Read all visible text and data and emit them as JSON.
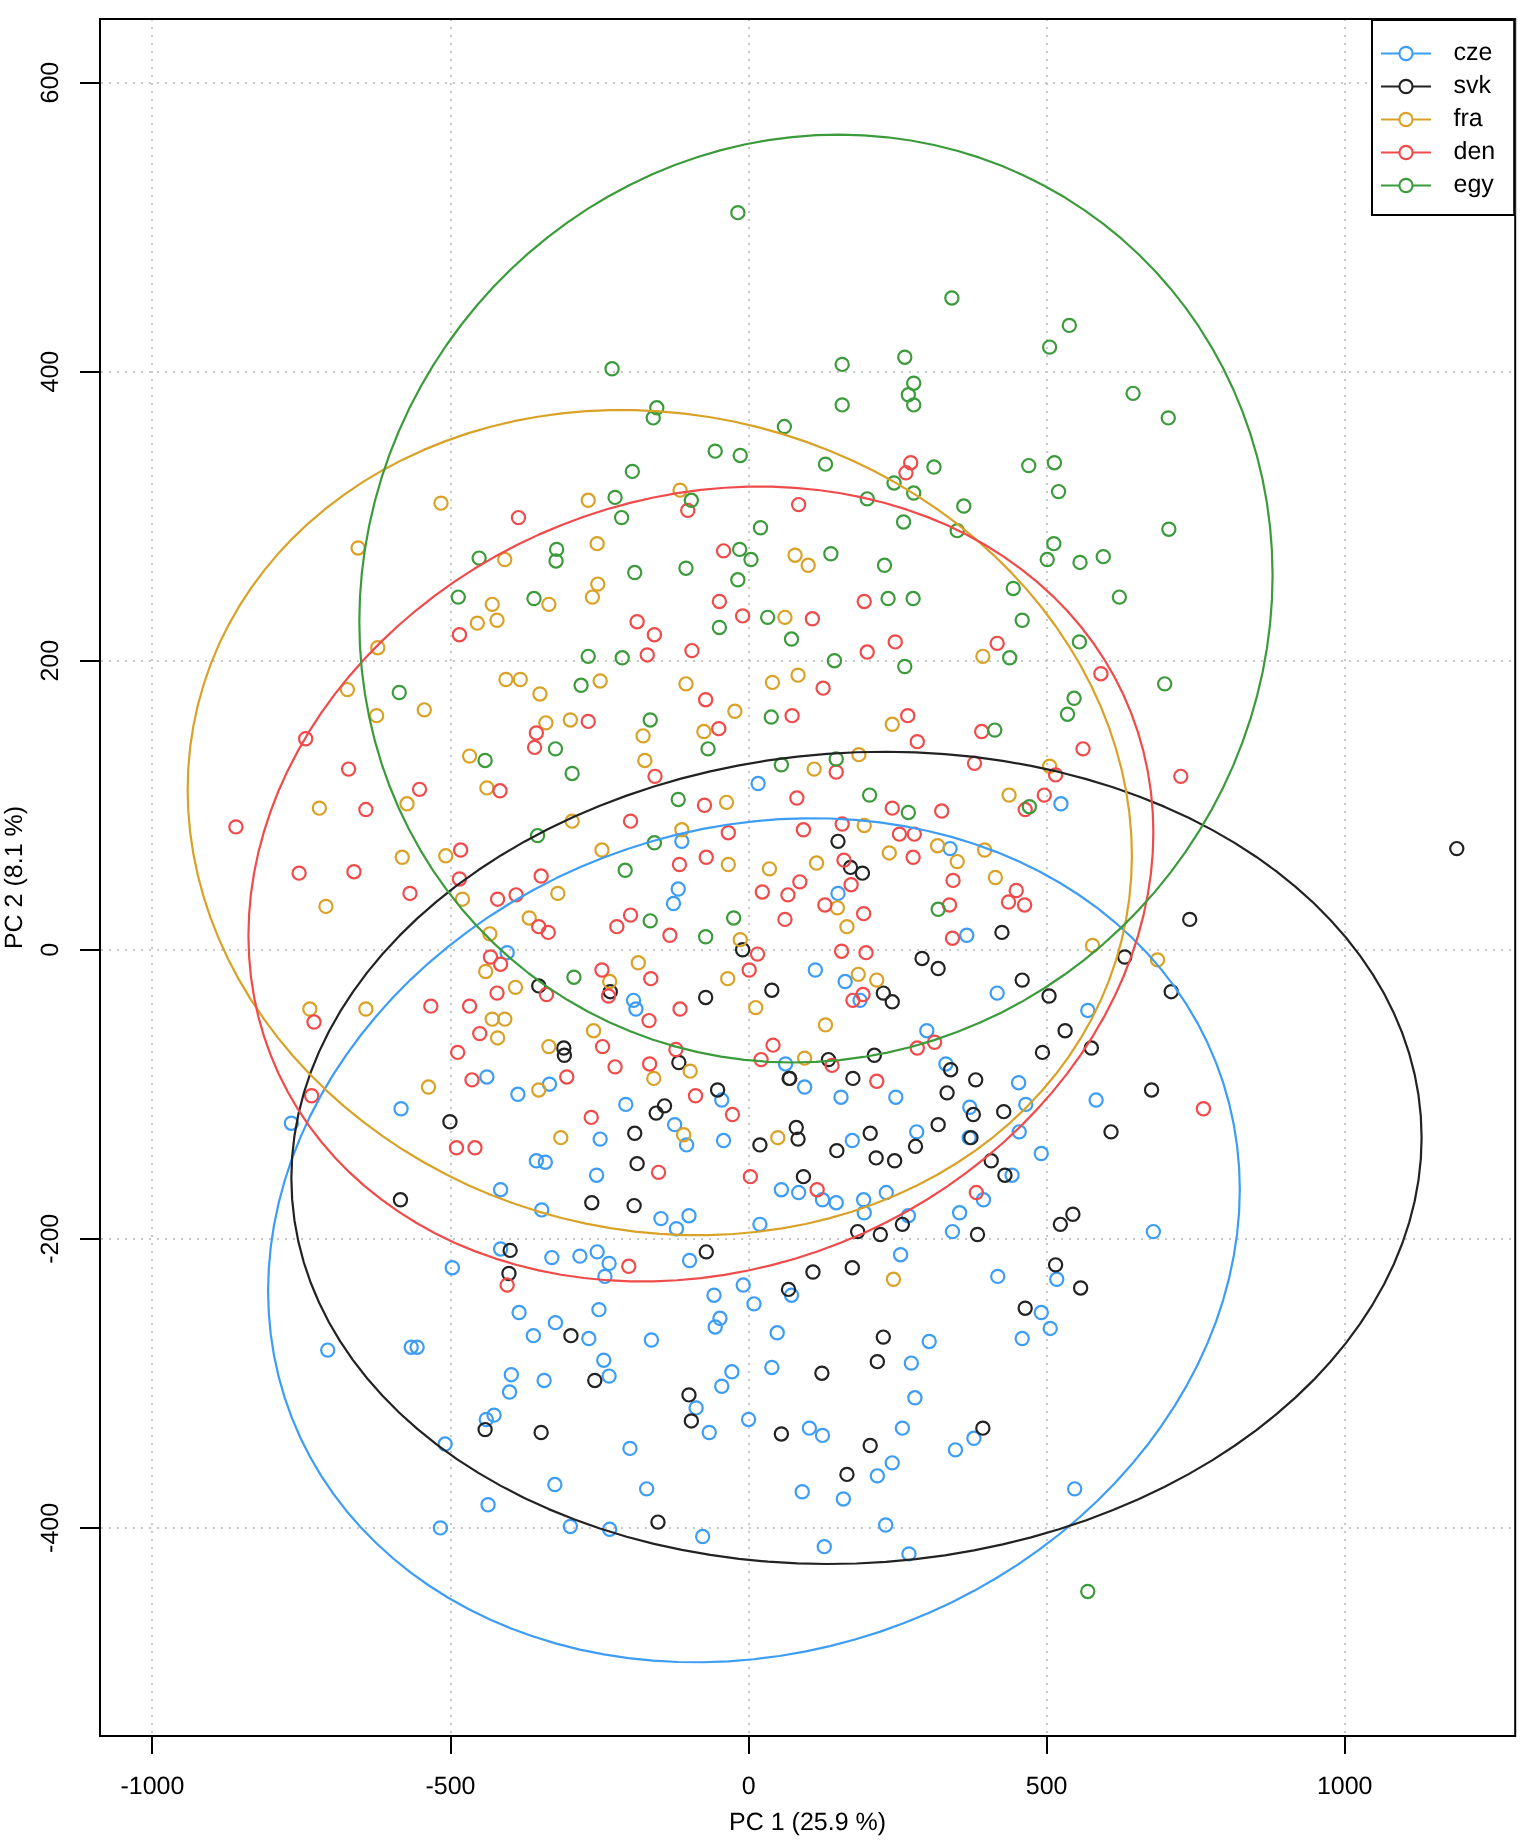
{
  "chart_data": {
    "type": "scatter",
    "xlabel": "PC 1 (25.9 %)",
    "ylabel": "PC 2 (8.1 %)",
    "xlim": [
      -1088,
      1286
    ],
    "ylim": [
      -544,
      644
    ],
    "xticks": [
      -1000,
      -500,
      0,
      500,
      1000
    ],
    "yticks": [
      -400,
      -200,
      0,
      200,
      400,
      600
    ],
    "grid": true,
    "legend": "top right",
    "marker": "circle",
    "series": [
      {
        "name": "cze",
        "color": "#3d9df5",
        "x": [
          -405,
          -112,
          -118,
          -126,
          -193,
          -189,
          -439,
          -387,
          -334,
          -583,
          -767,
          -206,
          -124,
          -104,
          -249,
          -42,
          -45,
          -356,
          -341,
          -255,
          16,
          62,
          524,
          338,
          366,
          150,
          112,
          162,
          187,
          417,
          569,
          299,
          331,
          247,
          155,
          94,
          453,
          465,
          583,
          371,
          454,
          491,
          174,
          282,
          370,
          -416,
          -347,
          55,
          -147,
          -100,
          -121,
          19,
          -416,
          -497,
          -330,
          -283,
          -254,
          -234,
          -241,
          -99,
          -9,
          9,
          -58,
          -385,
          -251,
          -324,
          -361,
          -268,
          -163,
          -48,
          -56,
          48,
          -706,
          -566,
          -556,
          -243,
          -398,
          -401,
          -343,
          -234,
          -28,
          -45,
          39,
          -427,
          -440,
          -88,
          -66,
          0,
          -509,
          -199,
          -325,
          -171,
          -437,
          -517,
          -299,
          -233,
          -77,
          679,
          84,
          124,
          147,
          193,
          231,
          268,
          354,
          342,
          394,
          442,
          255,
          194,
          418,
          517,
          491,
          506,
          459,
          303,
          273,
          279,
          258,
          102,
          124,
          347,
          378,
          241,
          216,
          90,
          159,
          547,
          230,
          127,
          269,
          72
        ],
        "values": [
          -2,
          75,
          42,
          32,
          -35,
          -41,
          -88,
          -100,
          -93,
          -110,
          -120,
          -107,
          -121,
          -135,
          -131,
          -132,
          -104,
          -146,
          -147,
          -156,
          115,
          -79,
          101,
          70,
          10,
          39,
          -14,
          -22,
          -35,
          -30,
          -42,
          -56,
          -79,
          -102,
          -102,
          -95,
          -92,
          -107,
          -104,
          -109,
          -126,
          -141,
          -132,
          -126,
          -130,
          -166,
          -180,
          -166,
          -186,
          -184,
          -193,
          -190,
          -207,
          -220,
          -213,
          -212,
          -209,
          -217,
          -226,
          -215,
          -232,
          -245,
          -239,
          -251,
          -249,
          -258,
          -267,
          -269,
          -270,
          -255,
          -261,
          -265,
          -277,
          -275,
          -275,
          -284,
          -294,
          -306,
          -298,
          -295,
          -292,
          -302,
          -289,
          -322,
          -325,
          -317,
          -334,
          -325,
          -342,
          -345,
          -370,
          -373,
          -384,
          -400,
          -399,
          -401,
          -406,
          -195,
          -168,
          -173,
          -175,
          -173,
          -168,
          -184,
          -182,
          -195,
          -173,
          -156,
          -211,
          -182,
          -226,
          -228,
          -251,
          -262,
          -269,
          -271,
          -286,
          -310,
          -331,
          -331,
          -336,
          -346,
          -338,
          -355,
          -364,
          -375,
          -380,
          -373,
          -398,
          -413,
          -418,
          -239
        ]
      },
      {
        "name": "svk",
        "color": "#222222",
        "x": [
          -352,
          -232,
          -72,
          39,
          -10,
          -310,
          -309,
          -117,
          -52,
          -141,
          -155,
          -501,
          -191,
          -187,
          19,
          69,
          80,
          1188,
          740,
          150,
          171,
          191,
          425,
          291,
          318,
          631,
          709,
          459,
          504,
          226,
          241,
          531,
          575,
          493,
          211,
          134,
          339,
          381,
          175,
          68,
          333,
          676,
          377,
          428,
          318,
          204,
          608,
          280,
          148,
          214,
          245,
          373,
          407,
          430,
          83,
          -584,
          -263,
          -192,
          -400,
          -402,
          -71,
          67,
          -298,
          -258,
          -100,
          -96,
          -442,
          -348,
          55,
          -152,
          92,
          183,
          221,
          258,
          384,
          523,
          544,
          515,
          557,
          464,
          174,
          108,
          226,
          216,
          123,
          393,
          204,
          165
        ],
        "values": [
          -25,
          -29,
          -33,
          -28,
          0,
          -68,
          -73,
          -78,
          -97,
          -108,
          -113,
          -119,
          -127,
          -148,
          -135,
          -89,
          -123,
          70,
          21,
          75,
          57,
          53,
          12,
          -6,
          -13,
          -5,
          -29,
          -21,
          -32,
          -30,
          -36,
          -56,
          -68,
          -71,
          -73,
          -76,
          -83,
          -90,
          -89,
          -89,
          -99,
          -97,
          -114,
          -112,
          -121,
          -127,
          -126,
          -136,
          -139,
          -144,
          -146,
          -130,
          -146,
          -156,
          -131,
          -173,
          -175,
          -177,
          -208,
          -224,
          -209,
          -235,
          -267,
          -298,
          -308,
          -326,
          -332,
          -334,
          -335,
          -396,
          -157,
          -195,
          -197,
          -190,
          -197,
          -190,
          -183,
          -218,
          -234,
          -248,
          -220,
          -223,
          -268,
          -285,
          -293,
          -331,
          -343,
          -363
        ]
      },
      {
        "name": "fra",
        "color": "#d9a227",
        "x": [
          -516,
          -655,
          -269,
          -115,
          -254,
          -253,
          -262,
          -409,
          -430,
          -335,
          78,
          100,
          -622,
          -673,
          -624,
          -544,
          -720,
          -573,
          -581,
          -709,
          -508,
          -480,
          -468,
          -439,
          -407,
          -383,
          -350,
          -340,
          -299,
          -249,
          -296,
          -246,
          -320,
          -368,
          -434,
          -441,
          -391,
          -736,
          -642,
          -430,
          -409,
          -421,
          -335,
          -537,
          -352,
          -315,
          -455,
          -422,
          -177,
          -174,
          -75,
          -37,
          -23,
          -105,
          40,
          -112,
          35,
          -34,
          -185,
          -233,
          -260,
          -159,
          -98,
          -109,
          49,
          -35,
          12,
          -14,
          393,
          83,
          241,
          185,
          110,
          505,
          437,
          194,
          317,
          396,
          236,
          114,
          350,
          414,
          149,
          165,
          184,
          215,
          129,
          577,
          686,
          94,
          61,
          243
        ],
        "values": [
          309,
          278,
          311,
          318,
          281,
          253,
          244,
          270,
          239,
          239,
          273,
          266,
          209,
          180,
          162,
          166,
          98,
          101,
          64,
          30,
          65,
          35,
          134,
          112,
          187,
          187,
          177,
          157,
          159,
          186,
          89,
          69,
          39,
          22,
          11,
          -15,
          -26,
          -41,
          -41,
          -48,
          -48,
          -61,
          -67,
          -95,
          -97,
          -130,
          226,
          228,
          148,
          131,
          151,
          102,
          165,
          184,
          185,
          83,
          56,
          59,
          -9,
          -22,
          -56,
          -89,
          -84,
          -128,
          -130,
          -20,
          -40,
          7,
          203,
          190,
          156,
          135,
          125,
          127,
          107,
          86,
          72,
          69,
          67,
          60,
          61,
          50,
          29,
          16,
          -17,
          -21,
          -52,
          3,
          -7,
          -75,
          230,
          -228
        ]
      },
      {
        "name": "den",
        "color": "#f04a4a",
        "x": [
          -386,
          -102,
          -42,
          -49,
          272,
          264,
          84,
          194,
          -860,
          -743,
          -671,
          -642,
          -552,
          -754,
          -662,
          -568,
          -485,
          -483,
          -485,
          -417,
          -359,
          -356,
          -269,
          -348,
          -421,
          -390,
          -352,
          -336,
          -187,
          -158,
          -170,
          -95,
          -10,
          -72,
          -50,
          -198,
          -157,
          -74,
          -71,
          -116,
          -198,
          -221,
          -132,
          -34,
          23,
          61,
          -533,
          -468,
          -451,
          -488,
          -464,
          -422,
          -433,
          -416,
          -339,
          -305,
          -246,
          -235,
          -245,
          -224,
          -164,
          -115,
          -167,
          -166,
          -122,
          -89,
          -27,
          -264,
          -490,
          -459,
          -733,
          -729,
          3,
          -151,
          41,
          21,
          1,
          15,
          107,
          246,
          199,
          417,
          591,
          125,
          73,
          267,
          283,
          391,
          561,
          379,
          147,
          725,
          515,
          496,
          464,
          81,
          241,
          324,
          157,
          253,
          278,
          92,
          276,
          160,
          343,
          86,
          66,
          172,
          449,
          436,
          463,
          337,
          193,
          128,
          342,
          156,
          197,
          175,
          192,
          283,
          312,
          215,
          763,
          140,
          -405,
          -201,
          115,
          382
        ],
        "values": [
          299,
          304,
          276,
          241,
          337,
          330,
          308,
          241,
          85,
          146,
          125,
          97,
          111,
          53,
          54,
          39,
          218,
          69,
          49,
          110,
          140,
          150,
          158,
          51,
          35,
          38,
          16,
          12,
          227,
          218,
          204,
          207,
          231,
          173,
          153,
          89,
          120,
          100,
          64,
          59,
          24,
          16,
          10,
          81,
          40,
          21,
          -39,
          -39,
          -58,
          -71,
          -90,
          -30,
          -5,
          -10,
          -31,
          -88,
          -14,
          -32,
          -67,
          -81,
          -20,
          -41,
          -49,
          -79,
          -69,
          -101,
          -114,
          -116,
          -137,
          -137,
          -101,
          -50,
          -157,
          -154,
          -66,
          -76,
          -14,
          -3,
          229,
          213,
          206,
          212,
          191,
          181,
          162,
          162,
          144,
          151,
          139,
          129,
          123,
          120,
          121,
          107,
          97,
          105,
          98,
          96,
          87,
          80,
          80,
          83,
          64,
          62,
          48,
          47,
          38,
          45,
          41,
          33,
          31,
          31,
          25,
          31,
          8,
          -1,
          -2,
          -35,
          -31,
          -68,
          -64,
          -91,
          -110,
          -80,
          -232,
          -219,
          -166,
          -168
        ]
      },
      {
        "name": "egy",
        "color": "#3b9b3b",
        "x": [
          -18,
          -229,
          -154,
          -160,
          60,
          -56,
          -14,
          -195,
          -224,
          -213,
          20,
          -452,
          -322,
          -323,
          -191,
          -105,
          -15,
          4,
          -18,
          -487,
          -360,
          -96,
          341,
          538,
          505,
          157,
          262,
          277,
          268,
          277,
          157,
          645,
          704,
          129,
          311,
          244,
          277,
          199,
          361,
          260,
          350,
          470,
          513,
          520,
          705,
          512,
          501,
          556,
          595,
          622,
          444,
          138,
          228,
          234,
          276,
          -586,
          -442,
          -324,
          -296,
          -269,
          -212,
          -281,
          -165,
          -68,
          -49,
          32,
          -354,
          -118,
          -158,
          -207,
          -165,
          -72,
          -25,
          -293,
          38,
          55,
          459,
          555,
          438,
          698,
          546,
          535,
          413,
          262,
          144,
          147,
          203,
          268,
          471,
          318,
          72,
          569
        ],
        "values": [
          510,
          402,
          375,
          368,
          362,
          345,
          342,
          331,
          313,
          299,
          292,
          271,
          277,
          269,
          261,
          264,
          277,
          270,
          256,
          244,
          243,
          311,
          451,
          432,
          417,
          405,
          410,
          392,
          384,
          377,
          377,
          385,
          368,
          336,
          334,
          323,
          316,
          312,
          307,
          296,
          290,
          335,
          337,
          317,
          291,
          281,
          270,
          268,
          272,
          244,
          250,
          274,
          266,
          243,
          243,
          178,
          131,
          139,
          122,
          203,
          202,
          183,
          159,
          139,
          223,
          230,
          79,
          104,
          74,
          55,
          20,
          9,
          22,
          -19,
          161,
          128,
          228,
          213,
          202,
          184,
          174,
          163,
          152,
          196,
          200,
          132,
          107,
          95,
          99,
          28,
          215,
          -444
        ]
      }
    ]
  }
}
